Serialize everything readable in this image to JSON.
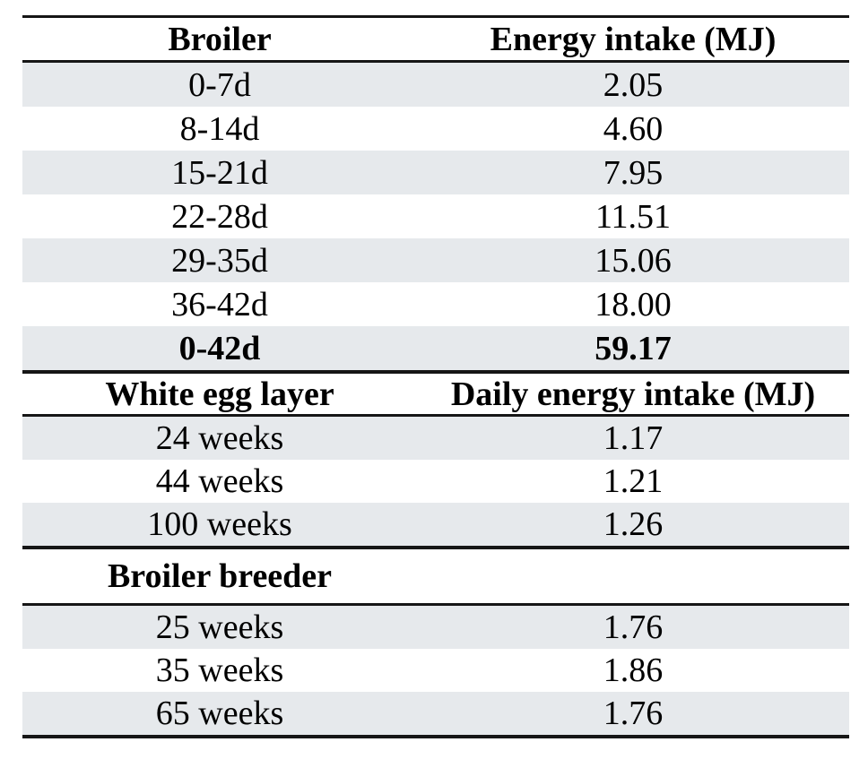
{
  "table": {
    "colors": {
      "stripe": "#e6e9ec",
      "border": "#161616",
      "text": "#000000",
      "background": "#ffffff"
    },
    "sections": [
      {
        "header": {
          "col1": "Broiler",
          "col2": "Energy intake (MJ)"
        },
        "rows": [
          {
            "label": "0-7d",
            "value": "2.05"
          },
          {
            "label": "8-14d",
            "value": "4.60"
          },
          {
            "label": "15-21d",
            "value": "7.95"
          },
          {
            "label": "22-28d",
            "value": "11.51"
          },
          {
            "label": "29-35d",
            "value": "15.06"
          },
          {
            "label": "36-42d",
            "value": "18.00"
          },
          {
            "label": "0-42d",
            "value": "59.17"
          }
        ]
      },
      {
        "header": {
          "col1": "White egg layer",
          "col2": "Daily energy intake (MJ)"
        },
        "rows": [
          {
            "label": "24 weeks",
            "value": "1.17"
          },
          {
            "label": "44 weeks",
            "value": "1.21"
          },
          {
            "label": "100 weeks",
            "value": "1.26"
          }
        ]
      },
      {
        "header": {
          "col1": "Broiler breeder",
          "col2": ""
        },
        "rows": [
          {
            "label": "25 weeks",
            "value": "1.76"
          },
          {
            "label": "35 weeks",
            "value": "1.86"
          },
          {
            "label": "65 weeks",
            "value": "1.76"
          }
        ]
      }
    ]
  },
  "chart_data": {
    "type": "table",
    "title": "",
    "sections": [
      {
        "columns": [
          "Broiler",
          "Energy intake (MJ)"
        ],
        "categories": [
          "0-7d",
          "8-14d",
          "15-21d",
          "22-28d",
          "29-35d",
          "36-42d",
          "0-42d"
        ],
        "values": [
          2.05,
          4.6,
          7.95,
          11.51,
          15.06,
          18.0,
          59.17
        ]
      },
      {
        "columns": [
          "White egg layer",
          "Daily energy intake (MJ)"
        ],
        "categories": [
          "24 weeks",
          "44 weeks",
          "100 weeks"
        ],
        "values": [
          1.17,
          1.21,
          1.26
        ]
      },
      {
        "columns": [
          "Broiler breeder",
          ""
        ],
        "categories": [
          "25 weeks",
          "35 weeks",
          "65 weeks"
        ],
        "values": [
          1.76,
          1.86,
          1.76
        ]
      }
    ]
  }
}
